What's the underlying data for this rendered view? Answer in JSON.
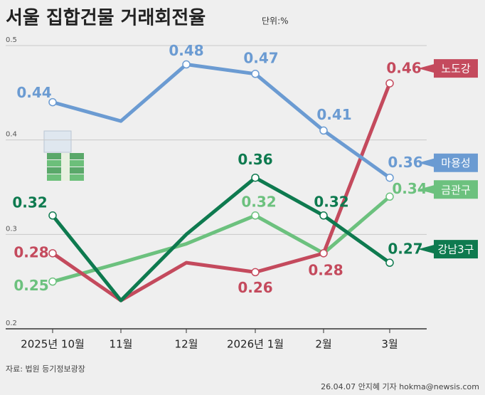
{
  "chart_data": {
    "type": "line",
    "title": "서울 집합건물 거래회전율",
    "unit": "단위:%",
    "source": "자료: 법원 등기정보광장",
    "credit": "26.04.07 안지혜 기자 hokma@newsis.com",
    "categories": [
      "2025년 10월",
      "11월",
      "12월",
      "2026년 1월",
      "2월",
      "3월"
    ],
    "ylim": [
      0.2,
      0.5
    ],
    "yticks": [
      0.2,
      0.3,
      0.4,
      0.5
    ],
    "grid": true,
    "series": [
      {
        "name": "마용성",
        "color": "#6b9bd2",
        "values": [
          0.44,
          0.42,
          0.48,
          0.47,
          0.41,
          0.36
        ],
        "value_labels": [
          "0.44",
          null,
          "0.48",
          "0.47",
          "0.41",
          "0.36"
        ]
      },
      {
        "name": "노도강",
        "color": "#c44a5d",
        "values": [
          0.28,
          0.23,
          0.27,
          0.26,
          0.28,
          0.46
        ],
        "value_labels": [
          "0.28",
          null,
          null,
          "0.26",
          "0.28",
          "0.46"
        ]
      },
      {
        "name": "금관구",
        "color": "#6cc17e",
        "values": [
          0.25,
          0.27,
          0.29,
          0.32,
          0.28,
          0.34
        ],
        "value_labels": [
          "0.25",
          null,
          null,
          "0.32",
          null,
          "0.34"
        ]
      },
      {
        "name": "강남3구",
        "color": "#0e7a4f",
        "values": [
          0.32,
          0.23,
          0.3,
          0.36,
          0.32,
          0.27
        ],
        "value_labels": [
          "0.32",
          null,
          null,
          "0.36",
          "0.32",
          "0.27"
        ]
      }
    ]
  }
}
